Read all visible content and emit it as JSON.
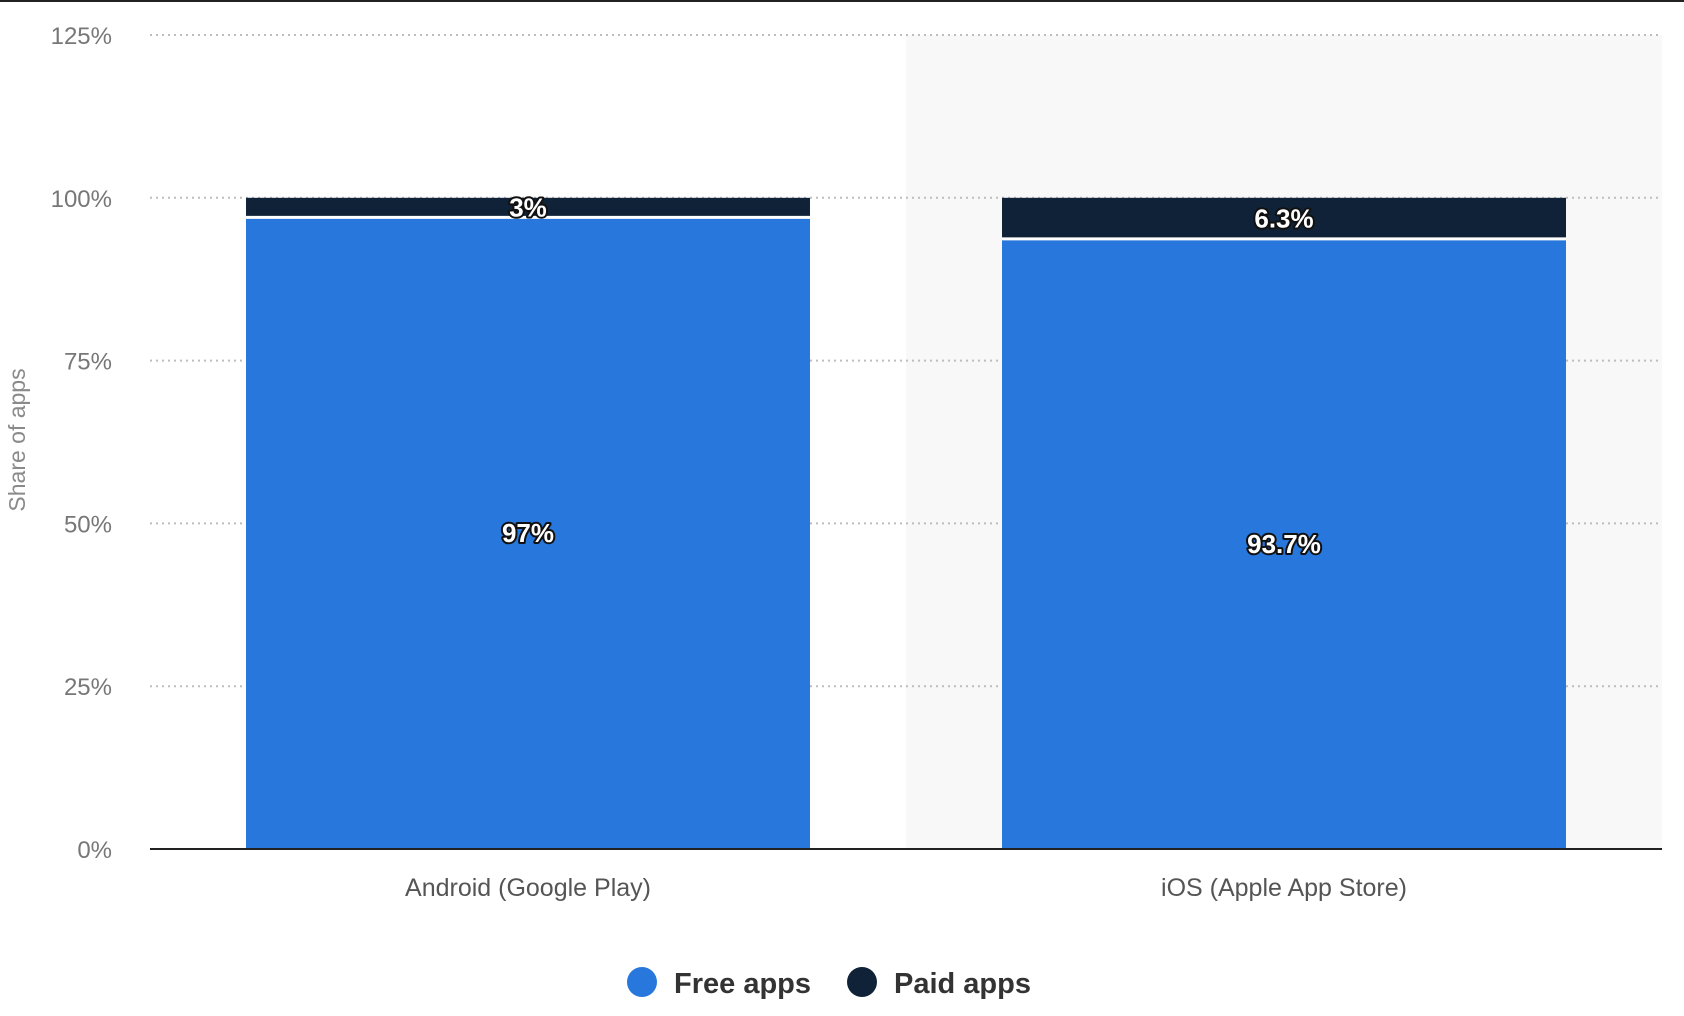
{
  "chart_data": {
    "type": "bar",
    "stacked": true,
    "categories": [
      "Android (Google Play)",
      "iOS (Apple App Store)"
    ],
    "series": [
      {
        "name": "Free apps",
        "values": [
          97,
          93.7
        ],
        "labels": [
          "97%",
          "93.7%"
        ],
        "color": "#2777dc"
      },
      {
        "name": "Paid apps",
        "values": [
          3,
          6.3
        ],
        "labels": [
          "3%",
          "6.3%"
        ],
        "color": "#0f2238"
      }
    ],
    "title": "",
    "xlabel": "",
    "ylabel": "Share of apps",
    "ylim": [
      0,
      125
    ],
    "yticks": [
      0,
      25,
      50,
      75,
      100,
      125
    ],
    "ytick_labels": [
      "0%",
      "25%",
      "50%",
      "75%",
      "100%",
      "125%"
    ],
    "grid": "horizontal-dotted",
    "legend": "bottom-center"
  }
}
